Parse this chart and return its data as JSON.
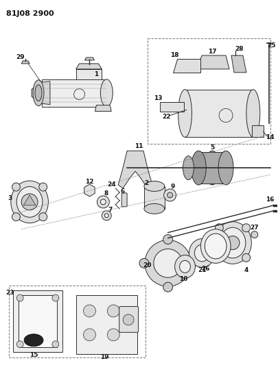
{
  "title": "81J08 2900",
  "background_color": "#ffffff",
  "fig_width": 4.05,
  "fig_height": 5.33,
  "dpi": 100,
  "line_color": "#2a2a2a",
  "label_fontsize": 6.5,
  "label_color": "#111111",
  "lw": 0.7
}
